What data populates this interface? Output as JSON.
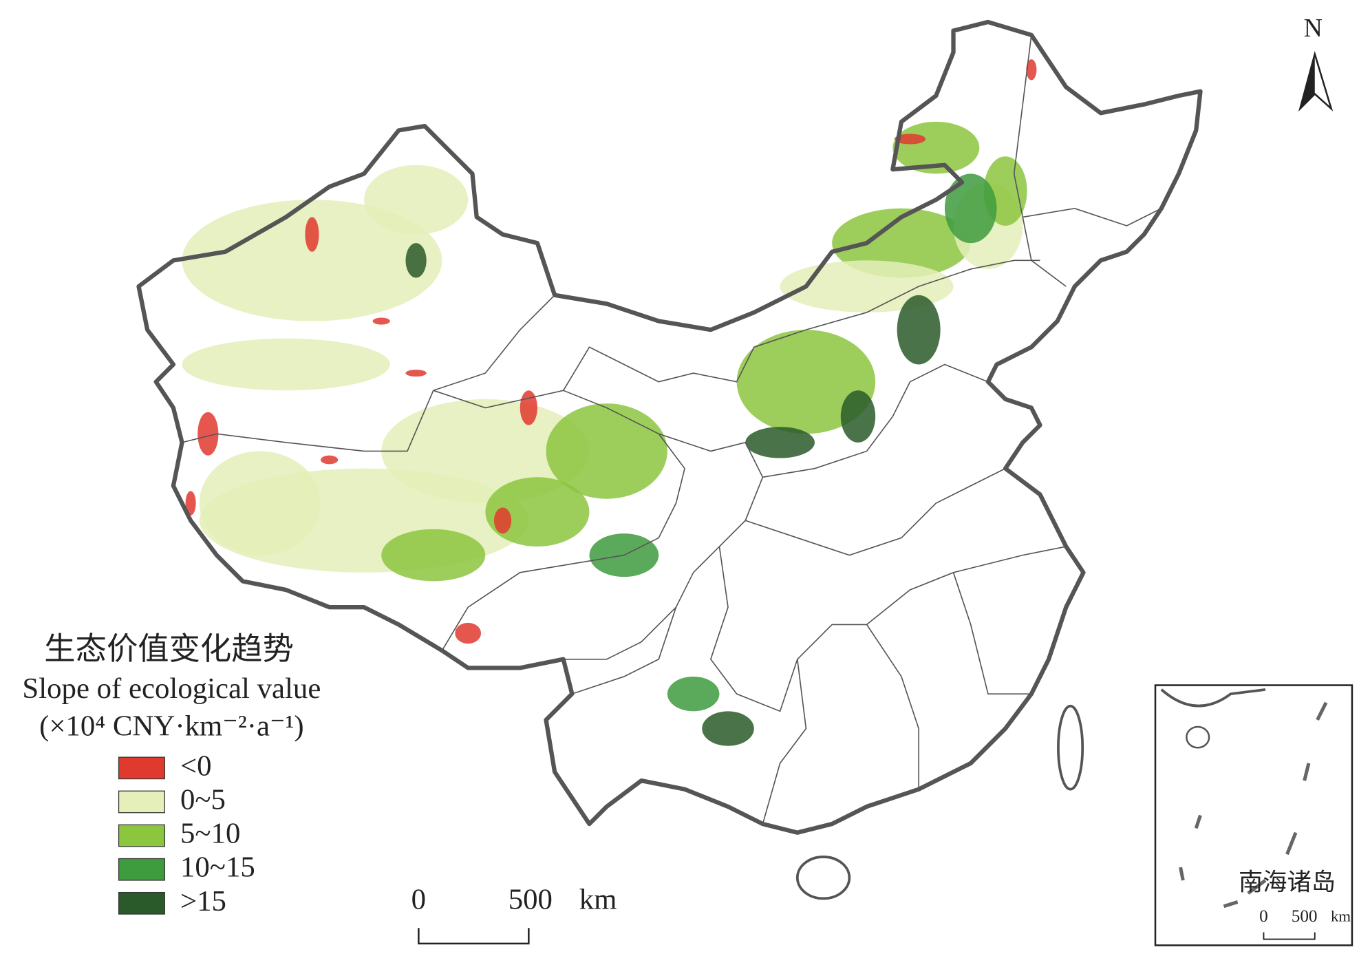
{
  "north": "N",
  "legend": {
    "title_cn": "生态价值变化趋势",
    "title_en": "Slope of ecological value",
    "unit": "(×10⁴ CNY·km⁻²·a⁻¹)",
    "items": [
      {
        "label": "<0",
        "color": "#e03a2f"
      },
      {
        "label": "0~5",
        "color": "#e4efb9"
      },
      {
        "label": "5~10",
        "color": "#8cc63f"
      },
      {
        "label": "10~15",
        "color": "#3e9b3e"
      },
      {
        "label": ">15",
        "color": "#2a5a2a"
      }
    ]
  },
  "scale_bar": {
    "start": "0",
    "end": "500",
    "unit": "km"
  },
  "inset": {
    "title": "南海诸岛",
    "scale_start": "0",
    "scale_end": "500",
    "scale_unit": "km"
  }
}
